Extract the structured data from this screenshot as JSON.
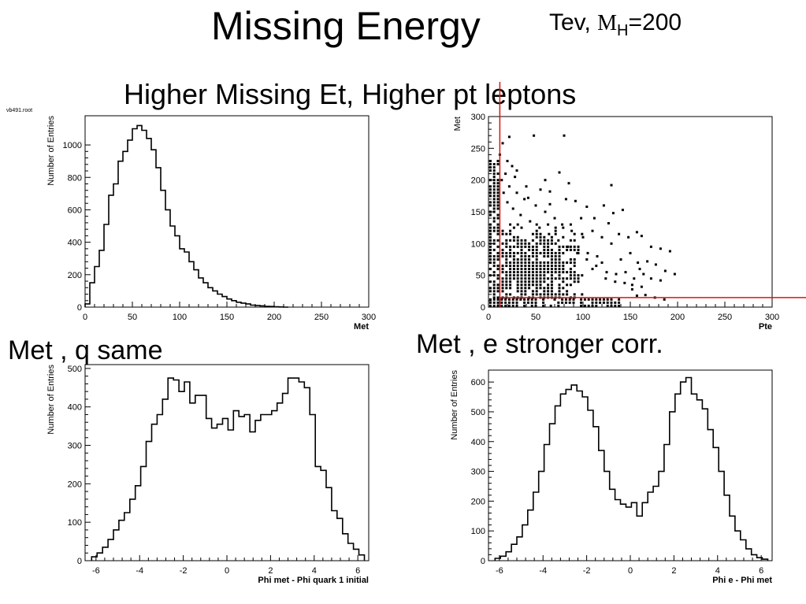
{
  "header": {
    "title": "Missing Energy",
    "note_prefix": "Tev,",
    "note_symbol": "M",
    "note_sub": "H",
    "note_suffix": "=200",
    "subtitle": "Higher Missing Et, Higher pt leptons"
  },
  "annotations": {
    "left": "Met , q same",
    "right": "Met , e stronger corr.",
    "file_label": "vb491.root"
  },
  "colors": {
    "cut_lines": "#e01010",
    "ink": "#000000"
  },
  "chart_data": [
    {
      "type": "histogram",
      "xlabel": "Met",
      "ylabel": "Number of Entries",
      "xlim": [
        0,
        300
      ],
      "ylim": [
        0,
        1180
      ],
      "xticks": [
        0,
        50,
        100,
        150,
        200,
        250,
        300
      ],
      "yticks": [
        0,
        200,
        400,
        600,
        800,
        1000
      ],
      "bins": [
        0,
        5,
        10,
        15,
        20,
        25,
        30,
        35,
        40,
        45,
        50,
        55,
        60,
        65,
        70,
        75,
        80,
        85,
        90,
        95,
        100,
        105,
        110,
        115,
        120,
        125,
        130,
        135,
        140,
        145,
        150,
        155,
        160,
        165,
        170,
        175,
        180,
        185,
        190,
        195,
        200,
        205,
        210
      ],
      "values": [
        20,
        150,
        250,
        350,
        510,
        690,
        760,
        900,
        960,
        1030,
        1100,
        1120,
        1090,
        1040,
        970,
        860,
        720,
        600,
        500,
        440,
        360,
        340,
        280,
        230,
        180,
        150,
        120,
        100,
        80,
        65,
        50,
        40,
        30,
        25,
        20,
        12,
        10,
        8,
        5,
        4,
        2,
        1,
        0
      ]
    },
    {
      "type": "scatter",
      "xlabel": "Pte",
      "ylabel": "Met",
      "xlim": [
        0,
        300
      ],
      "ylim": [
        0,
        300
      ],
      "xticks": [
        0,
        50,
        100,
        150,
        200,
        250,
        300
      ],
      "yticks": [
        0,
        50,
        100,
        150,
        200,
        250,
        300
      ],
      "cut_lines": {
        "x": 12,
        "y": 15
      },
      "points": [
        [
          15,
          258
        ],
        [
          22,
          268
        ],
        [
          48,
          270
        ],
        [
          80,
          270
        ],
        [
          12,
          240
        ],
        [
          20,
          230
        ],
        [
          25,
          222
        ],
        [
          30,
          215
        ],
        [
          18,
          210
        ],
        [
          14,
          200
        ],
        [
          28,
          205
        ],
        [
          40,
          190
        ],
        [
          55,
          185
        ],
        [
          60,
          200
        ],
        [
          75,
          212
        ],
        [
          85,
          195
        ],
        [
          65,
          182
        ],
        [
          130,
          192
        ],
        [
          42,
          172
        ],
        [
          65,
          162
        ],
        [
          82,
          170
        ],
        [
          92,
          167
        ],
        [
          104,
          158
        ],
        [
          122,
          160
        ],
        [
          132,
          148
        ],
        [
          142,
          153
        ],
        [
          98,
          140
        ],
        [
          112,
          140
        ],
        [
          127,
          132
        ],
        [
          157,
          118
        ],
        [
          162,
          112
        ],
        [
          148,
          110
        ],
        [
          138,
          115
        ],
        [
          172,
          95
        ],
        [
          182,
          92
        ],
        [
          192,
          88
        ],
        [
          168,
          72
        ],
        [
          158,
          70
        ],
        [
          177,
          67
        ],
        [
          160,
          60
        ],
        [
          187,
          57
        ],
        [
          197,
          52
        ],
        [
          172,
          45
        ],
        [
          182,
          42
        ],
        [
          152,
          35
        ],
        [
          162,
          32
        ],
        [
          152,
          28
        ],
        [
          157,
          18
        ],
        [
          166,
          19
        ],
        [
          176,
          15
        ],
        [
          186,
          12
        ],
        [
          105,
          85
        ],
        [
          115,
          80
        ],
        [
          120,
          70
        ],
        [
          110,
          60
        ],
        [
          125,
          55
        ],
        [
          135,
          52
        ],
        [
          145,
          55
        ],
        [
          95,
          95
        ],
        [
          100,
          110
        ],
        [
          88,
          120
        ],
        [
          78,
          130
        ],
        [
          70,
          140
        ],
        [
          60,
          150
        ],
        [
          50,
          160
        ],
        [
          38,
          170
        ],
        [
          30,
          180
        ],
        [
          22,
          190
        ],
        [
          16,
          180
        ],
        [
          20,
          165
        ],
        [
          26,
          155
        ],
        [
          34,
          145
        ],
        [
          44,
          135
        ],
        [
          54,
          125
        ],
        [
          64,
          115
        ],
        [
          74,
          105
        ],
        [
          84,
          95
        ],
        [
          94,
          85
        ],
        [
          104,
          75
        ],
        [
          114,
          65
        ],
        [
          124,
          45
        ],
        [
          134,
          40
        ],
        [
          144,
          38
        ],
        [
          154,
          45
        ],
        [
          164,
          52
        ],
        [
          140,
          75
        ],
        [
          150,
          85
        ],
        [
          130,
          100
        ],
        [
          120,
          110
        ],
        [
          110,
          120
        ]
      ],
      "dense_core": {
        "x_range": [
          15,
          100
        ],
        "y_range": [
          15,
          130
        ],
        "x_step": 4,
        "y_step": 5
      }
    },
    {
      "type": "histogram",
      "xlabel": "Phi met - Phi quark 1 initial",
      "ylabel": "Number of Entries",
      "xlim": [
        -6.5,
        6.5
      ],
      "ylim": [
        0,
        510
      ],
      "xticks": [
        -6,
        -4,
        -2,
        0,
        2,
        4,
        6
      ],
      "yticks": [
        0,
        100,
        200,
        300,
        400,
        500
      ],
      "bins": [
        -6.2,
        -5.95,
        -5.7,
        -5.45,
        -5.2,
        -4.95,
        -4.7,
        -4.45,
        -4.2,
        -3.95,
        -3.7,
        -3.45,
        -3.2,
        -2.95,
        -2.7,
        -2.45,
        -2.2,
        -1.95,
        -1.7,
        -1.45,
        -1.2,
        -0.95,
        -0.7,
        -0.45,
        -0.2,
        0.05,
        0.3,
        0.55,
        0.8,
        1.05,
        1.3,
        1.55,
        1.8,
        2.05,
        2.3,
        2.55,
        2.8,
        3.05,
        3.3,
        3.55,
        3.8,
        4.05,
        4.3,
        4.55,
        4.8,
        5.05,
        5.3,
        5.55,
        5.8,
        6.05,
        6.3
      ],
      "values": [
        10,
        20,
        35,
        55,
        80,
        105,
        125,
        160,
        195,
        245,
        310,
        355,
        380,
        420,
        475,
        470,
        440,
        465,
        410,
        430,
        430,
        370,
        345,
        355,
        370,
        340,
        390,
        375,
        380,
        335,
        365,
        380,
        380,
        390,
        410,
        435,
        475,
        475,
        465,
        450,
        380,
        245,
        235,
        190,
        130,
        110,
        70,
        45,
        30,
        15
      ]
    },
    {
      "type": "histogram",
      "xlabel": "Phi e - Phi met",
      "ylabel": "Number of Entries",
      "xlim": [
        -6.5,
        6.5
      ],
      "ylim": [
        0,
        640
      ],
      "xticks": [
        -6,
        -4,
        -2,
        0,
        2,
        4,
        6
      ],
      "yticks": [
        0,
        100,
        200,
        300,
        400,
        500,
        600
      ],
      "bins": [
        -6.2,
        -5.95,
        -5.7,
        -5.45,
        -5.2,
        -4.95,
        -4.7,
        -4.45,
        -4.2,
        -3.95,
        -3.7,
        -3.45,
        -3.2,
        -2.95,
        -2.7,
        -2.45,
        -2.2,
        -1.95,
        -1.7,
        -1.45,
        -1.2,
        -0.95,
        -0.7,
        -0.45,
        -0.2,
        0.05,
        0.3,
        0.55,
        0.8,
        1.05,
        1.3,
        1.55,
        1.8,
        2.05,
        2.3,
        2.55,
        2.8,
        3.05,
        3.3,
        3.55,
        3.8,
        4.05,
        4.3,
        4.55,
        4.8,
        5.05,
        5.3,
        5.55,
        5.8,
        6.05,
        6.3
      ],
      "values": [
        8,
        15,
        30,
        55,
        80,
        120,
        170,
        230,
        300,
        390,
        460,
        520,
        560,
        575,
        590,
        570,
        550,
        505,
        450,
        370,
        300,
        240,
        205,
        190,
        180,
        195,
        150,
        195,
        230,
        250,
        300,
        390,
        500,
        560,
        600,
        615,
        560,
        540,
        510,
        440,
        380,
        300,
        220,
        150,
        100,
        70,
        40,
        20,
        10,
        5
      ]
    }
  ]
}
